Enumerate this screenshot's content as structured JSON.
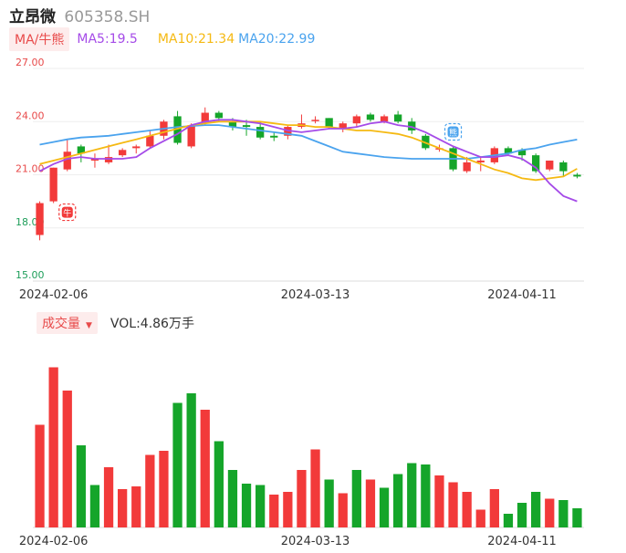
{
  "header": {
    "name": "立昂微",
    "code": "605358.SH"
  },
  "ma_bar": {
    "toggle": "MA/牛熊",
    "ma5": "MA5:19.5",
    "ma10": "MA10:21.34",
    "ma20": "MA20:22.99"
  },
  "volume_bar": {
    "toggle": "成交量",
    "vol": "VOL:4.86万手"
  },
  "colors": {
    "up": "#f23a3a",
    "down": "#15a52a",
    "ma5": "#a54be8",
    "ma10": "#f5b912",
    "ma20": "#4aa3ee",
    "grid": "#eeeeee",
    "axis_up": "#e84a4a",
    "axis_down": "#1e9e5a"
  },
  "icons": {
    "bull": "牛",
    "bear": "熊"
  },
  "chart_data": [
    {
      "type": "candlestick",
      "y_ticks": [
        "27.00",
        "24.00",
        "21.00",
        "18.00",
        "15.00"
      ],
      "ylim": [
        15,
        27
      ],
      "x_ticks": [
        {
          "label": "2024-02-06",
          "index": 1
        },
        {
          "label": "2024-03-13",
          "index": 20
        },
        {
          "label": "2024-04-11",
          "index": 35
        }
      ],
      "candles": [
        {
          "o": 17.6,
          "c": 19.4,
          "h": 19.5,
          "l": 17.3
        },
        {
          "o": 19.5,
          "c": 21.4,
          "h": 21.4,
          "l": 19.4
        },
        {
          "o": 21.3,
          "c": 22.3,
          "h": 23.0,
          "l": 21.2
        },
        {
          "o": 22.6,
          "c": 22.2,
          "h": 22.7,
          "l": 21.7
        },
        {
          "o": 21.8,
          "c": 21.9,
          "h": 22.2,
          "l": 21.4
        },
        {
          "o": 21.7,
          "c": 22.0,
          "h": 22.7,
          "l": 21.6
        },
        {
          "o": 22.1,
          "c": 22.4,
          "h": 22.5,
          "l": 22.0
        },
        {
          "o": 22.5,
          "c": 22.6,
          "h": 22.7,
          "l": 22.2
        },
        {
          "o": 22.6,
          "c": 23.2,
          "h": 23.5,
          "l": 22.5
        },
        {
          "o": 23.2,
          "c": 24.0,
          "h": 24.1,
          "l": 23.0
        },
        {
          "o": 24.3,
          "c": 22.8,
          "h": 24.6,
          "l": 22.7
        },
        {
          "o": 22.6,
          "c": 23.8,
          "h": 23.9,
          "l": 22.5
        },
        {
          "o": 23.9,
          "c": 24.5,
          "h": 24.8,
          "l": 23.8
        },
        {
          "o": 24.5,
          "c": 24.2,
          "h": 24.6,
          "l": 24.0
        },
        {
          "o": 24.0,
          "c": 23.7,
          "h": 24.2,
          "l": 23.5
        },
        {
          "o": 23.8,
          "c": 23.7,
          "h": 24.1,
          "l": 23.2
        },
        {
          "o": 23.7,
          "c": 23.1,
          "h": 24.0,
          "l": 23.0
        },
        {
          "o": 23.2,
          "c": 23.1,
          "h": 23.4,
          "l": 22.9
        },
        {
          "o": 23.2,
          "c": 23.7,
          "h": 23.8,
          "l": 23.0
        },
        {
          "o": 23.7,
          "c": 23.9,
          "h": 24.4,
          "l": 23.6
        },
        {
          "o": 24.1,
          "c": 24.1,
          "h": 24.3,
          "l": 23.9
        },
        {
          "o": 24.2,
          "c": 23.7,
          "h": 24.2,
          "l": 23.6
        },
        {
          "o": 23.6,
          "c": 23.9,
          "h": 24.0,
          "l": 23.4
        },
        {
          "o": 23.9,
          "c": 24.3,
          "h": 24.4,
          "l": 23.7
        },
        {
          "o": 24.4,
          "c": 24.1,
          "h": 24.5,
          "l": 24.0
        },
        {
          "o": 24.0,
          "c": 24.3,
          "h": 24.4,
          "l": 23.9
        },
        {
          "o": 24.4,
          "c": 24.0,
          "h": 24.6,
          "l": 23.9
        },
        {
          "o": 24.0,
          "c": 23.5,
          "h": 24.2,
          "l": 23.3
        },
        {
          "o": 23.2,
          "c": 22.5,
          "h": 23.3,
          "l": 22.4
        },
        {
          "o": 22.5,
          "c": 22.5,
          "h": 22.7,
          "l": 22.3
        },
        {
          "o": 22.5,
          "c": 21.3,
          "h": 22.6,
          "l": 21.2
        },
        {
          "o": 21.2,
          "c": 21.7,
          "h": 22.0,
          "l": 21.1
        },
        {
          "o": 21.7,
          "c": 21.8,
          "h": 22.0,
          "l": 21.2
        },
        {
          "o": 21.7,
          "c": 22.5,
          "h": 22.6,
          "l": 21.6
        },
        {
          "o": 22.5,
          "c": 22.2,
          "h": 22.6,
          "l": 22.1
        },
        {
          "o": 22.4,
          "c": 22.1,
          "h": 22.5,
          "l": 21.8
        },
        {
          "o": 22.1,
          "c": 21.2,
          "h": 22.2,
          "l": 21.1
        },
        {
          "o": 21.3,
          "c": 21.8,
          "h": 21.8,
          "l": 21.2
        },
        {
          "o": 21.7,
          "c": 21.2,
          "h": 21.8,
          "l": 20.9
        },
        {
          "o": 21.0,
          "c": 20.9,
          "h": 21.1,
          "l": 20.8
        }
      ],
      "ma5": [
        21.2,
        21.6,
        21.9,
        22.0,
        21.9,
        21.9,
        21.9,
        22.0,
        22.5,
        22.9,
        23.3,
        23.8,
        24.0,
        24.1,
        24.1,
        24.0,
        23.9,
        23.7,
        23.5,
        23.4,
        23.5,
        23.6,
        23.6,
        23.7,
        23.9,
        24.0,
        23.8,
        23.7,
        23.4,
        23.0,
        22.6,
        22.3,
        22.0,
        22.0,
        22.1,
        21.9,
        21.4,
        20.5,
        19.8,
        19.5
      ],
      "ma10": [
        21.6,
        21.8,
        22.0,
        22.2,
        22.4,
        22.6,
        22.8,
        23.0,
        23.2,
        23.4,
        23.6,
        23.8,
        23.9,
        24.0,
        24.0,
        24.0,
        24.0,
        23.9,
        23.8,
        23.8,
        23.7,
        23.7,
        23.6,
        23.5,
        23.5,
        23.4,
        23.3,
        23.1,
        22.8,
        22.5,
        22.2,
        21.9,
        21.6,
        21.3,
        21.1,
        20.8,
        20.7,
        20.8,
        20.9,
        21.34
      ],
      "ma20": [
        22.7,
        22.85,
        23.0,
        23.1,
        23.15,
        23.2,
        23.3,
        23.4,
        23.5,
        23.6,
        23.7,
        23.75,
        23.8,
        23.8,
        23.7,
        23.6,
        23.5,
        23.4,
        23.3,
        23.2,
        22.9,
        22.6,
        22.3,
        22.2,
        22.1,
        22.0,
        21.95,
        21.9,
        21.9,
        21.9,
        21.9,
        21.9,
        22.0,
        22.1,
        22.2,
        22.4,
        22.5,
        22.7,
        22.85,
        22.99
      ]
    },
    {
      "type": "bar",
      "title": "成交量",
      "values": [
        7.5,
        11.7,
        10.0,
        6.0,
        3.1,
        4.4,
        2.8,
        3.0,
        5.3,
        5.6,
        9.1,
        9.8,
        8.6,
        6.3,
        4.2,
        3.2,
        3.1,
        2.4,
        2.6,
        4.2,
        5.7,
        3.5,
        2.5,
        4.2,
        3.5,
        2.9,
        3.9,
        4.7,
        4.6,
        3.8,
        3.3,
        2.6,
        1.3,
        2.8,
        1.0,
        1.8,
        2.6,
        2.1,
        2.0,
        1.4
      ],
      "colors_up": [
        true,
        true,
        true,
        false,
        false,
        true,
        true,
        true,
        true,
        true,
        false,
        false,
        true,
        false,
        false,
        false,
        false,
        true,
        true,
        true,
        true,
        false,
        true,
        false,
        true,
        false,
        false,
        false,
        false,
        true,
        true,
        true,
        true,
        true,
        false,
        false,
        false,
        true,
        false,
        false
      ]
    }
  ]
}
